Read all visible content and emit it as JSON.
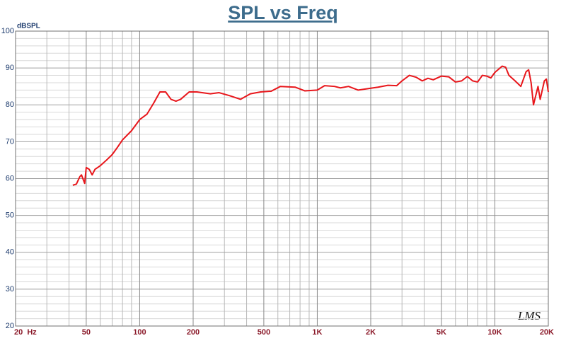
{
  "chart_data": {
    "type": "line",
    "title": "SPL vs Freq",
    "ylabel": "dBSPL",
    "annotation": "LMS",
    "color": "#e8161b",
    "xscale": "log",
    "grid": true,
    "xlim": [
      20,
      20000
    ],
    "ylim": [
      20,
      100
    ],
    "xticks": [
      {
        "value": 20,
        "label": "20  Hz"
      },
      50,
      100,
      200,
      500,
      {
        "value": 1000,
        "label": "1K"
      },
      {
        "value": 2000,
        "label": "2K"
      },
      {
        "value": 5000,
        "label": "5K"
      },
      {
        "value": 10000,
        "label": "10K"
      },
      {
        "value": 20000,
        "label": "20K"
      }
    ],
    "yticks": [
      20,
      30,
      40,
      50,
      60,
      70,
      80,
      90,
      100
    ],
    "x_minor_ticks": [
      30,
      40,
      60,
      70,
      80,
      90,
      300,
      400,
      600,
      700,
      800,
      900,
      3000,
      4000,
      6000,
      7000,
      8000,
      9000
    ],
    "y_minor_ticks": [
      22,
      24,
      26,
      28,
      32,
      34,
      36,
      38,
      42,
      44,
      46,
      48,
      52,
      54,
      56,
      58,
      62,
      64,
      66,
      68,
      72,
      74,
      76,
      78,
      82,
      84,
      86,
      88,
      92,
      94,
      96,
      98
    ],
    "x": [
      42,
      44,
      46,
      47,
      49,
      50,
      52,
      54,
      56,
      60,
      65,
      70,
      75,
      80,
      90,
      100,
      110,
      120,
      130,
      140,
      150,
      160,
      170,
      190,
      210,
      250,
      280,
      320,
      370,
      420,
      480,
      550,
      620,
      750,
      850,
      1000,
      1100,
      1250,
      1350,
      1500,
      1700,
      2000,
      2200,
      2500,
      2800,
      3000,
      3300,
      3600,
      3900,
      4200,
      4500,
      5000,
      5500,
      6000,
      6500,
      7000,
      7500,
      8000,
      8500,
      9000,
      9500,
      10000,
      11000,
      11500,
      12000,
      13000,
      14000,
      15000,
      15500,
      16000,
      16500,
      17500,
      18000,
      19000,
      19500,
      20000
    ],
    "values": [
      58.2,
      58.5,
      60.5,
      61,
      58.7,
      63,
      62.5,
      61,
      62.5,
      63.5,
      65,
      66.5,
      68.5,
      70.5,
      73,
      76,
      77.5,
      80.5,
      83.5,
      83.5,
      81.5,
      81,
      81.5,
      83.5,
      83.5,
      83,
      83.3,
      82.5,
      81.5,
      83,
      83.5,
      83.7,
      85,
      84.8,
      83.8,
      84,
      85.2,
      85,
      84.6,
      85,
      84,
      84.5,
      84.8,
      85.3,
      85.2,
      86.5,
      88,
      87.5,
      86.5,
      87.2,
      86.8,
      87.8,
      87.6,
      86.2,
      86.5,
      87.7,
      86.5,
      86.2,
      88,
      87.8,
      87.3,
      88.8,
      90.5,
      90.2,
      88,
      86.5,
      85,
      89,
      89.5,
      86,
      80,
      85,
      81.5,
      86.5,
      87,
      83.5
    ]
  }
}
